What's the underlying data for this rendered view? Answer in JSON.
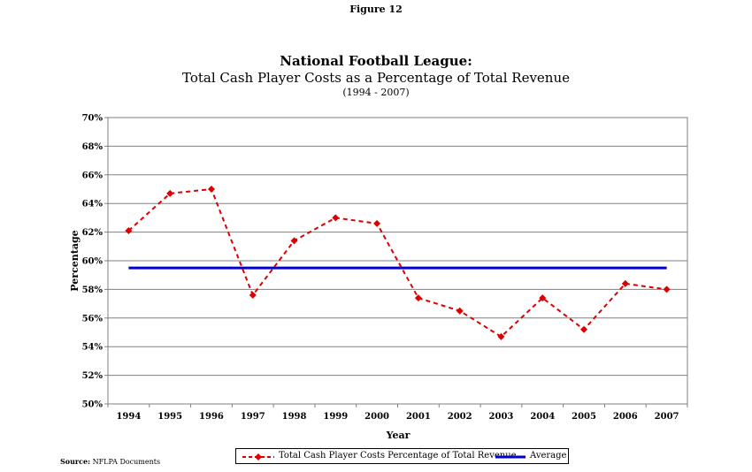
{
  "figure_label": "Figure 12",
  "chart_data": {
    "type": "line",
    "title": "National Football League:",
    "subtitle": "Total Cash Player Costs as a Percentage of Total Revenue",
    "subtitle2": "(1994 - 2007)",
    "xlabel": "Year",
    "ylabel": "Percentage",
    "categories": [
      "1994",
      "1995",
      "1996",
      "1997",
      "1998",
      "1999",
      "2000",
      "2001",
      "2002",
      "2003",
      "2004",
      "2005",
      "2006",
      "2007"
    ],
    "ylim": [
      50,
      70
    ],
    "yticks": [
      "50%",
      "52%",
      "54%",
      "56%",
      "58%",
      "60%",
      "62%",
      "64%",
      "66%",
      "68%",
      "70%"
    ],
    "grid": true,
    "legend_position": "bottom",
    "series": [
      {
        "name": "Total Cash Player Costs Percentage of Total Revenue",
        "color": "#dd0000",
        "style": "dashed-diamond",
        "values": [
          62.1,
          64.7,
          65.0,
          57.6,
          61.4,
          63.0,
          62.6,
          57.4,
          56.5,
          54.7,
          57.4,
          55.2,
          58.4,
          58.0
        ]
      },
      {
        "name": "Average",
        "color": "#0000cc",
        "style": "solid",
        "values": [
          59.5,
          59.5,
          59.5,
          59.5,
          59.5,
          59.5,
          59.5,
          59.5,
          59.5,
          59.5,
          59.5,
          59.5,
          59.5,
          59.5
        ]
      }
    ]
  },
  "source": {
    "label": "Source:",
    "text": "NFLPA Documents"
  }
}
